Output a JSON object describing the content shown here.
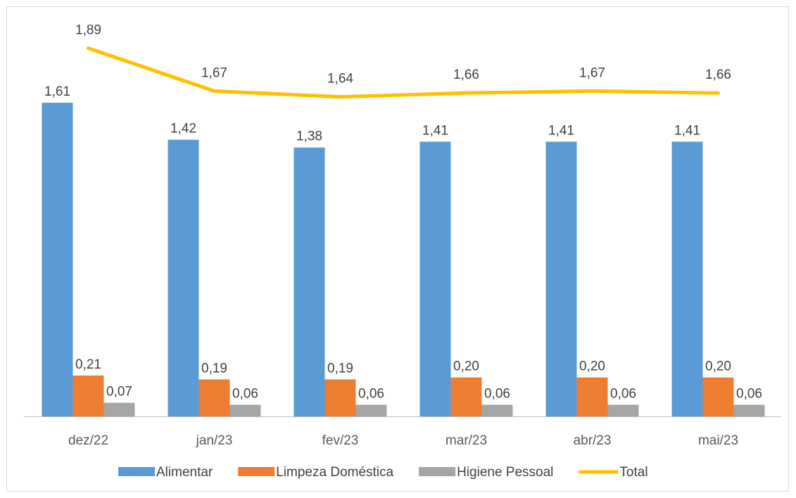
{
  "chart_data": {
    "type": "bar",
    "categories": [
      "dez/22",
      "jan/23",
      "fev/23",
      "mar/23",
      "abr/23",
      "mai/23"
    ],
    "series": [
      {
        "name": "Alimentar",
        "kind": "bar",
        "color": "#5b9bd5",
        "values": [
          1.61,
          1.42,
          1.38,
          1.41,
          1.41,
          1.41
        ],
        "labels": [
          "1,61",
          "1,42",
          "1,38",
          "1,41",
          "1,41",
          "1,41"
        ]
      },
      {
        "name": "Limpeza Doméstica",
        "kind": "bar",
        "color": "#ed7d31",
        "values": [
          0.21,
          0.19,
          0.19,
          0.2,
          0.2,
          0.2
        ],
        "labels": [
          "0,21",
          "0,19",
          "0,19",
          "0,20",
          "0,20",
          "0,20"
        ]
      },
      {
        "name": "Higiene Pessoal",
        "kind": "bar",
        "color": "#a5a5a5",
        "values": [
          0.07,
          0.06,
          0.06,
          0.06,
          0.06,
          0.06
        ],
        "labels": [
          "0,07",
          "0,06",
          "0,06",
          "0,06",
          "0,06",
          "0,06"
        ]
      },
      {
        "name": "Total",
        "kind": "line",
        "color": "#ffc000",
        "values": [
          1.89,
          1.67,
          1.64,
          1.66,
          1.67,
          1.66
        ],
        "labels": [
          "1,89",
          "1,67",
          "1,64",
          "1,66",
          "1,67",
          "1,66"
        ]
      }
    ],
    "ylim": [
      0,
      2.0
    ],
    "grid": false,
    "legend_position": "bottom"
  }
}
